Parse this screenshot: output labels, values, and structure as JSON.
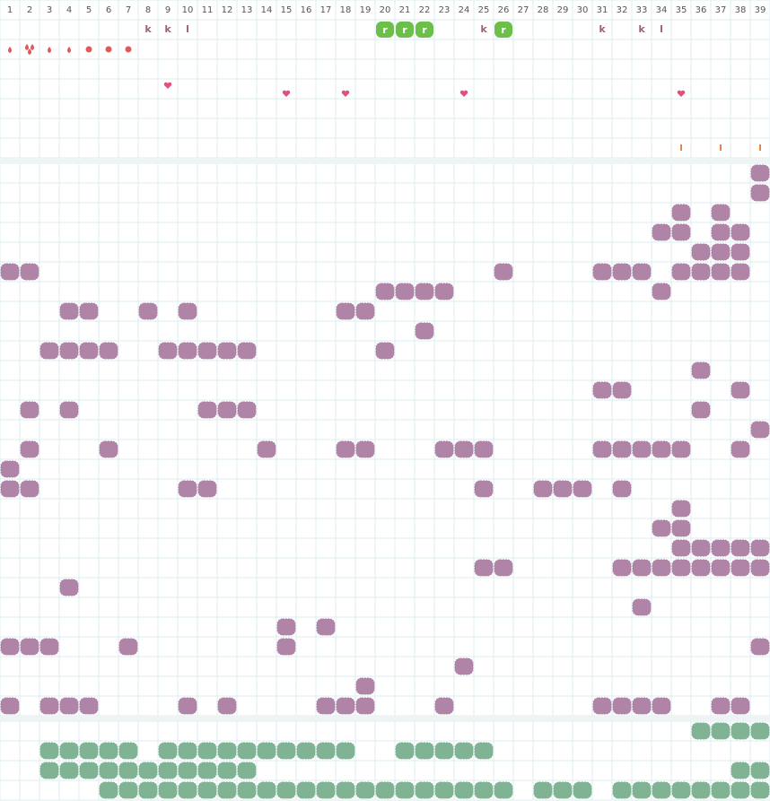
{
  "columns": [
    1,
    2,
    3,
    4,
    5,
    6,
    7,
    8,
    9,
    10,
    11,
    12,
    13,
    14,
    15,
    16,
    17,
    18,
    19,
    20,
    21,
    22,
    23,
    24,
    25,
    26,
    27,
    28,
    29,
    30,
    31,
    32,
    33,
    34,
    35,
    36,
    37,
    38,
    39
  ],
  "top_letters": [
    "k",
    "k",
    "l",
    "r",
    "r",
    "r",
    "k",
    "r",
    "k",
    "k",
    "l"
  ]
}
